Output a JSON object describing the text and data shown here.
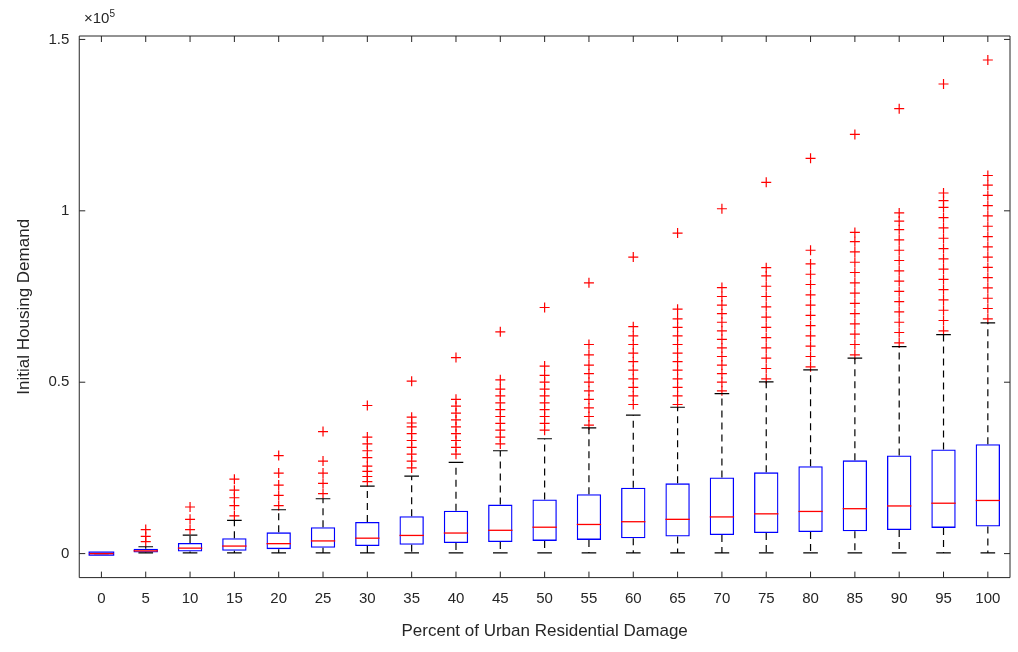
{
  "chart_data": {
    "type": "box",
    "xlabel": "Percent of Urban Residential Damage",
    "ylabel": "Initial Housing Demand",
    "annotations": [
      "×10$^{5}$"
    ],
    "categories": [
      "0",
      "5",
      "10",
      "15",
      "20",
      "25",
      "30",
      "35",
      "40",
      "45",
      "50",
      "55",
      "60",
      "65",
      "70",
      "75",
      "80",
      "85",
      "90",
      "95",
      "100"
    ],
    "ylim": [
      -0.07,
      1.51
    ],
    "yticks": [
      0,
      0.5,
      1,
      1.5
    ],
    "grid": false,
    "marker": "cross",
    "line_style": "dashed",
    "series": [
      {
        "color": "#0000ff",
        "boxes": [
          {
            "low": 0,
            "q1": 0,
            "median": 0,
            "q3": 0,
            "high": 0
          },
          {
            "low": 0.002,
            "q1": 0.003,
            "median": 0.008,
            "q3": 0.014,
            "high": 0.02,
            "outliers": [
              0.035,
              0.05,
              0.07
            ]
          },
          {
            "low": 0.002,
            "q1": 0.006,
            "median": 0.016,
            "q3": 0.031,
            "high": 0.054,
            "outliers": [
              0.07,
              0.1,
              0.136
            ]
          },
          {
            "low": 0.002,
            "q1": 0.008,
            "median": 0.022,
            "q3": 0.045,
            "high": 0.097,
            "outliers": [
              0.11,
              0.14,
              0.163,
              0.185,
              0.217
            ]
          },
          {
            "low": 0.002,
            "q1": 0.013,
            "median": 0.029,
            "q3": 0.062,
            "high": 0.128,
            "outliers": [
              0.14,
              0.17,
              0.2,
              0.235,
              0.286
            ]
          },
          {
            "low": 0.002,
            "q1": 0.017,
            "median": 0.037,
            "q3": 0.077,
            "high": 0.16,
            "outliers": [
              0.175,
              0.205,
              0.235,
              0.27,
              0.356
            ]
          },
          {
            "low": 0.002,
            "q1": 0.022,
            "median": 0.045,
            "q3": 0.092,
            "high": 0.197,
            "outliers": [
              0.21,
              0.225,
              0.24,
              0.255,
              0.28,
              0.3,
              0.32,
              0.34,
              0.432
            ]
          },
          {
            "low": 0.002,
            "q1": 0.026,
            "median": 0.053,
            "q3": 0.109,
            "high": 0.226,
            "outliers": [
              0.25,
              0.27,
              0.29,
              0.31,
              0.33,
              0.35,
              0.37,
              0.381,
              0.398,
              0.503
            ]
          },
          {
            "low": 0.002,
            "q1": 0.031,
            "median": 0.06,
            "q3": 0.125,
            "high": 0.266,
            "outliers": [
              0.29,
              0.31,
              0.33,
              0.35,
              0.37,
              0.39,
              0.41,
              0.43,
              0.45,
              0.572
            ]
          },
          {
            "low": 0.002,
            "q1": 0.034,
            "median": 0.068,
            "q3": 0.143,
            "high": 0.3,
            "outliers": [
              0.32,
              0.34,
              0.36,
              0.38,
              0.4,
              0.42,
              0.44,
              0.46,
              0.48,
              0.507,
              0.647
            ]
          },
          {
            "low": 0.002,
            "q1": 0.037,
            "median": 0.077,
            "q3": 0.158,
            "high": 0.335,
            "outliers": [
              0.36,
              0.38,
              0.4,
              0.42,
              0.44,
              0.46,
              0.48,
              0.5,
              0.52,
              0.547,
              0.718
            ]
          },
          {
            "low": 0.002,
            "q1": 0.04,
            "median": 0.085,
            "q3": 0.173,
            "high": 0.367,
            "outliers": [
              0.375,
              0.4,
              0.425,
              0.45,
              0.475,
              0.5,
              0.525,
              0.55,
              0.58,
              0.61,
              0.79
            ]
          },
          {
            "low": 0.002,
            "q1": 0.045,
            "median": 0.093,
            "q3": 0.192,
            "high": 0.404,
            "outliers": [
              0.435,
              0.46,
              0.485,
              0.51,
              0.535,
              0.56,
              0.585,
              0.61,
              0.635,
              0.662,
              0.865
            ]
          },
          {
            "low": 0.002,
            "q1": 0.05,
            "median": 0.1,
            "q3": 0.205,
            "high": 0.427,
            "outliers": [
              0.435,
              0.46,
              0.485,
              0.51,
              0.535,
              0.56,
              0.585,
              0.61,
              0.635,
              0.66,
              0.685,
              0.713,
              0.935
            ]
          },
          {
            "low": 0.002,
            "q1": 0.054,
            "median": 0.107,
            "q3": 0.222,
            "high": 0.467,
            "outliers": [
              0.475,
              0.5,
              0.525,
              0.55,
              0.575,
              0.6,
              0.625,
              0.65,
              0.675,
              0.7,
              0.725,
              0.75,
              0.776,
              1.006
            ]
          },
          {
            "low": 0.002,
            "q1": 0.06,
            "median": 0.116,
            "q3": 0.237,
            "high": 0.501,
            "outliers": [
              0.51,
              0.54,
              0.57,
              0.6,
              0.63,
              0.66,
              0.69,
              0.72,
              0.75,
              0.78,
              0.81,
              0.834,
              1.083
            ]
          },
          {
            "low": 0.002,
            "q1": 0.063,
            "median": 0.123,
            "q3": 0.255,
            "high": 0.536,
            "outliers": [
              0.545,
              0.575,
              0.605,
              0.635,
              0.665,
              0.695,
              0.725,
              0.755,
              0.785,
              0.815,
              0.845,
              0.885,
              1.153
            ]
          },
          {
            "low": 0.002,
            "q1": 0.065,
            "median": 0.131,
            "q3": 0.272,
            "high": 0.57,
            "outliers": [
              0.58,
              0.61,
              0.64,
              0.67,
              0.7,
              0.73,
              0.76,
              0.79,
              0.82,
              0.85,
              0.88,
              0.91,
              0.937,
              1.223
            ]
          },
          {
            "low": 0.002,
            "q1": 0.069,
            "median": 0.139,
            "q3": 0.286,
            "high": 0.604,
            "outliers": [
              0.615,
              0.645,
              0.675,
              0.705,
              0.735,
              0.765,
              0.795,
              0.825,
              0.855,
              0.885,
              0.915,
              0.945,
              0.97,
              0.994,
              1.298
            ]
          },
          {
            "low": 0.002,
            "q1": 0.075,
            "median": 0.147,
            "q3": 0.304,
            "high": 0.639,
            "outliers": [
              0.65,
              0.68,
              0.71,
              0.74,
              0.77,
              0.8,
              0.83,
              0.86,
              0.89,
              0.92,
              0.95,
              0.98,
              1.01,
              1.03,
              1.052,
              1.37
            ]
          },
          {
            "low": 0.002,
            "q1": 0.079,
            "median": 0.155,
            "q3": 0.319,
            "high": 0.673,
            "outliers": [
              0.685,
              0.715,
              0.745,
              0.775,
              0.805,
              0.835,
              0.865,
              0.895,
              0.925,
              0.955,
              0.985,
              1.015,
              1.045,
              1.075,
              1.103,
              1.44
            ]
          }
        ]
      }
    ]
  }
}
